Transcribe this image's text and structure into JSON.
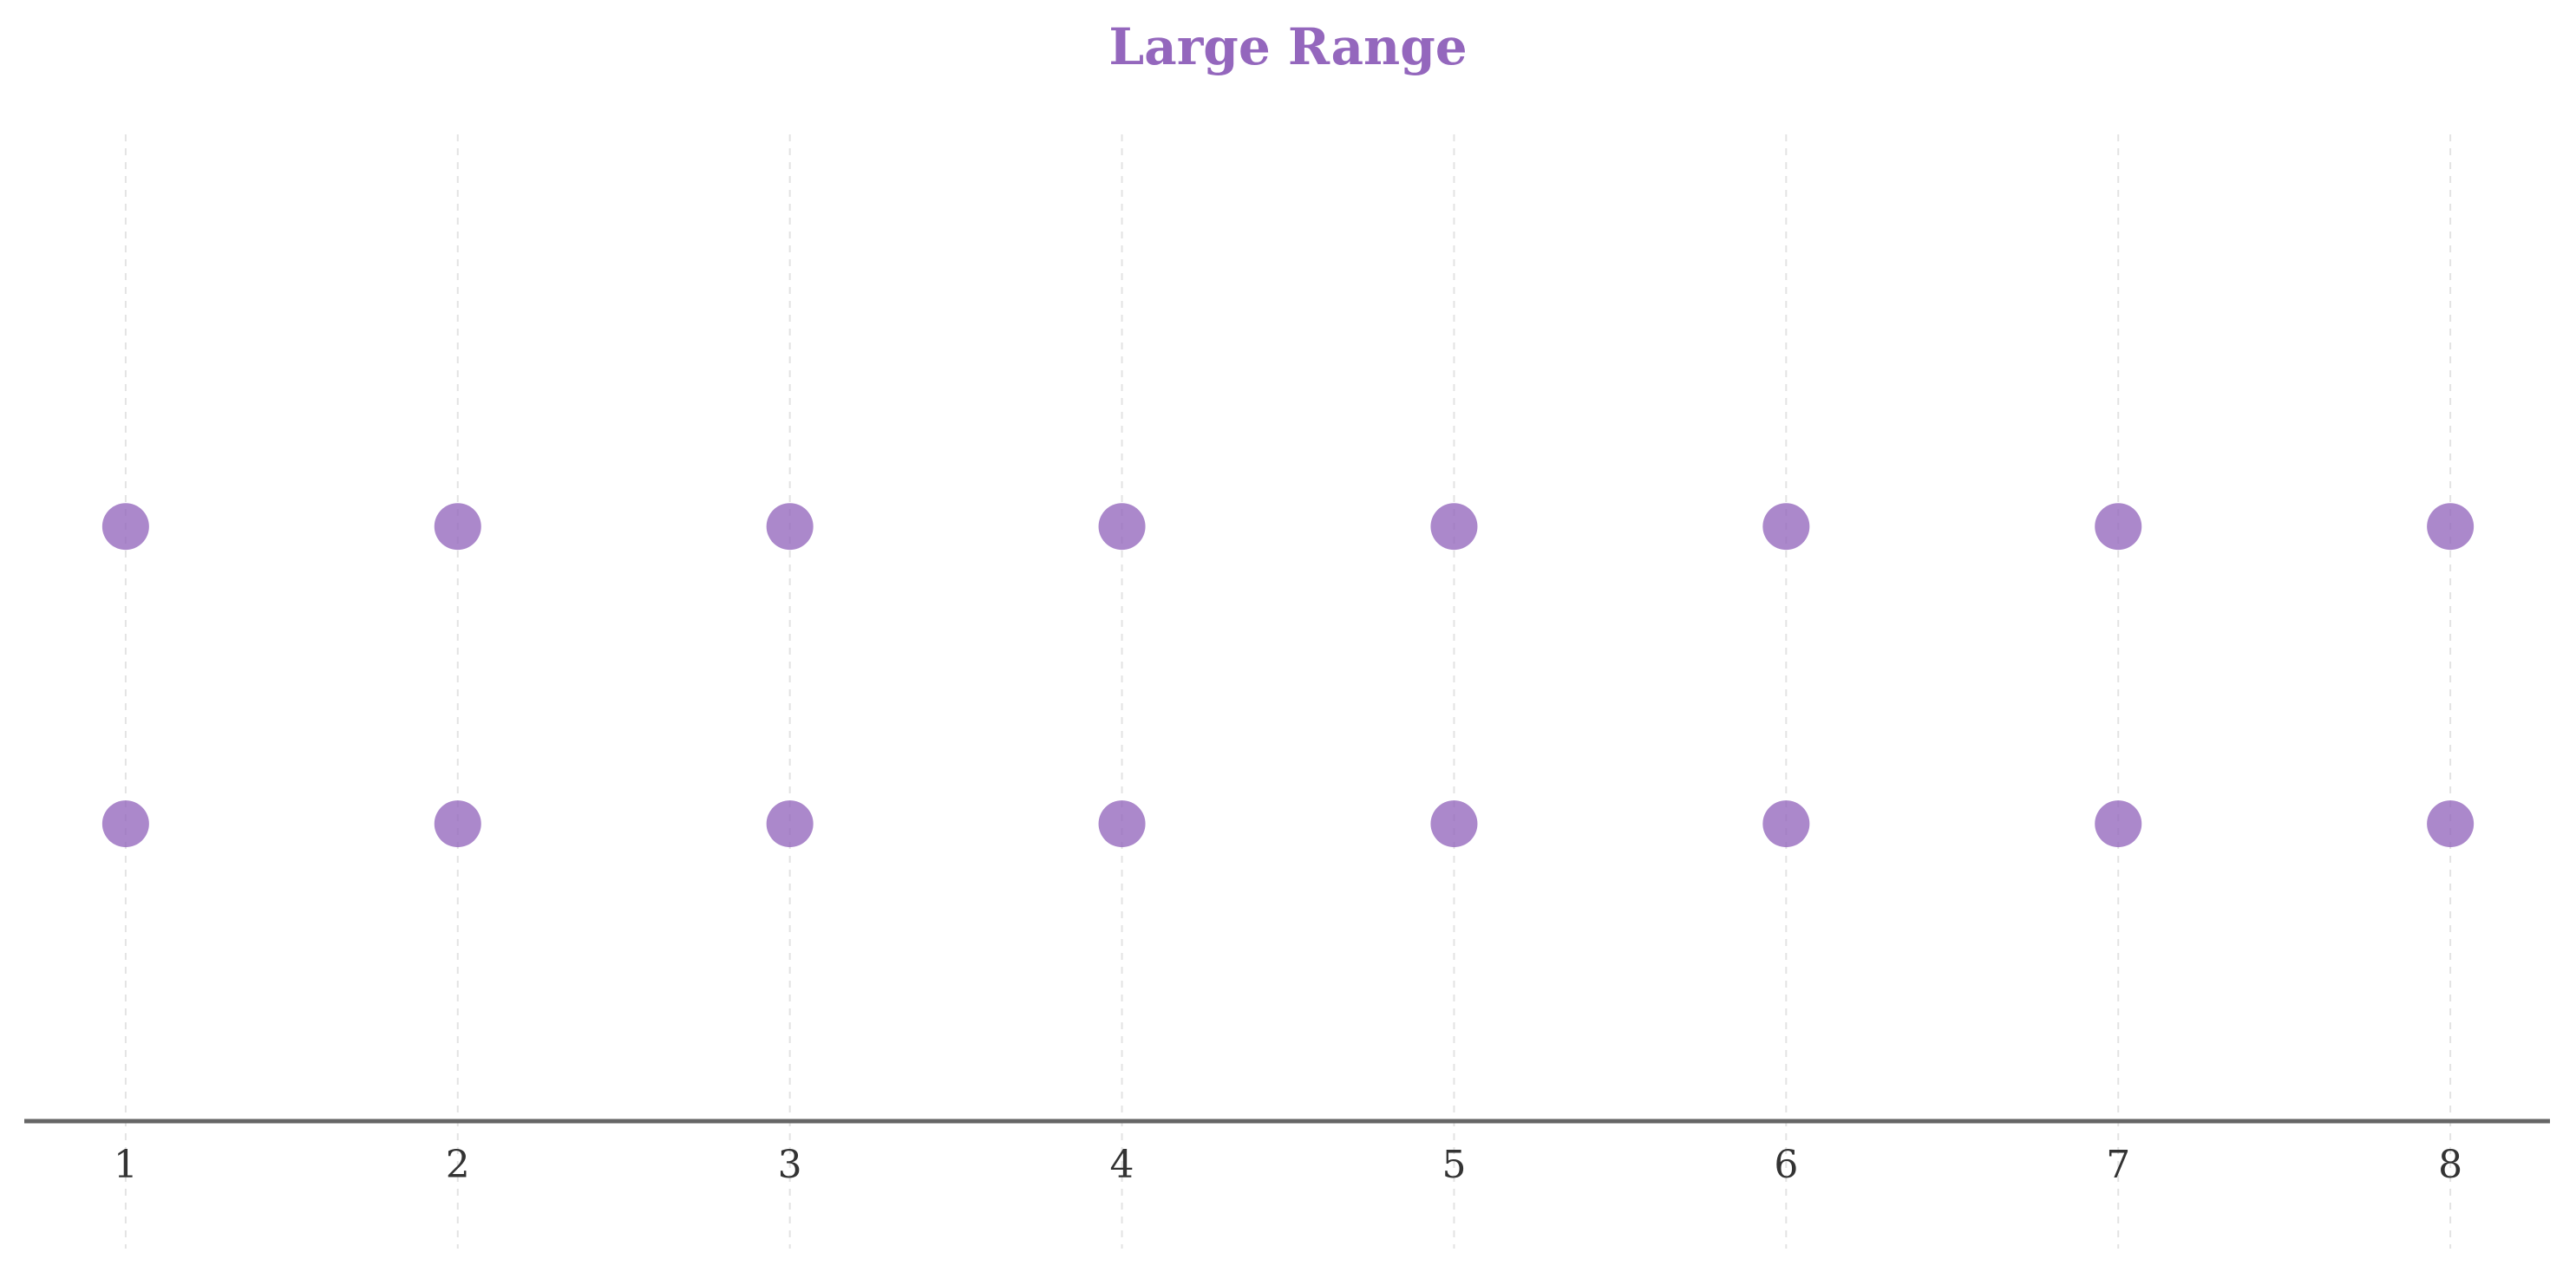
{
  "chart_data": {
    "type": "scatter",
    "title": "Large Range",
    "xlabel": "",
    "ylabel": "",
    "x_ticks": [
      1,
      2,
      3,
      4,
      5,
      6,
      7,
      8
    ],
    "xlim": [
      0.7,
      8.3
    ],
    "ylim": [
      0,
      2
    ],
    "grid": "vertical dashed",
    "y_axis_visible": false,
    "series": [
      {
        "points": [
          {
            "x": 1,
            "y": 1.2
          },
          {
            "x": 2,
            "y": 1.2
          },
          {
            "x": 3,
            "y": 1.2
          },
          {
            "x": 4,
            "y": 1.2
          },
          {
            "x": 5,
            "y": 1.2
          },
          {
            "x": 6,
            "y": 1.2
          },
          {
            "x": 7,
            "y": 1.2
          },
          {
            "x": 8,
            "y": 1.2
          }
        ]
      },
      {
        "points": [
          {
            "x": 1,
            "y": 0.6
          },
          {
            "x": 2,
            "y": 0.6
          },
          {
            "x": 3,
            "y": 0.6
          },
          {
            "x": 4,
            "y": 0.6
          },
          {
            "x": 5,
            "y": 0.6
          },
          {
            "x": 6,
            "y": 0.6
          },
          {
            "x": 7,
            "y": 0.6
          },
          {
            "x": 8,
            "y": 0.6
          }
        ]
      }
    ],
    "colors": {
      "title": "#9467bd",
      "marker": "#9467bd",
      "axis": "#666666",
      "grid": "#e3e3e3",
      "tick_label": "#333333"
    }
  }
}
